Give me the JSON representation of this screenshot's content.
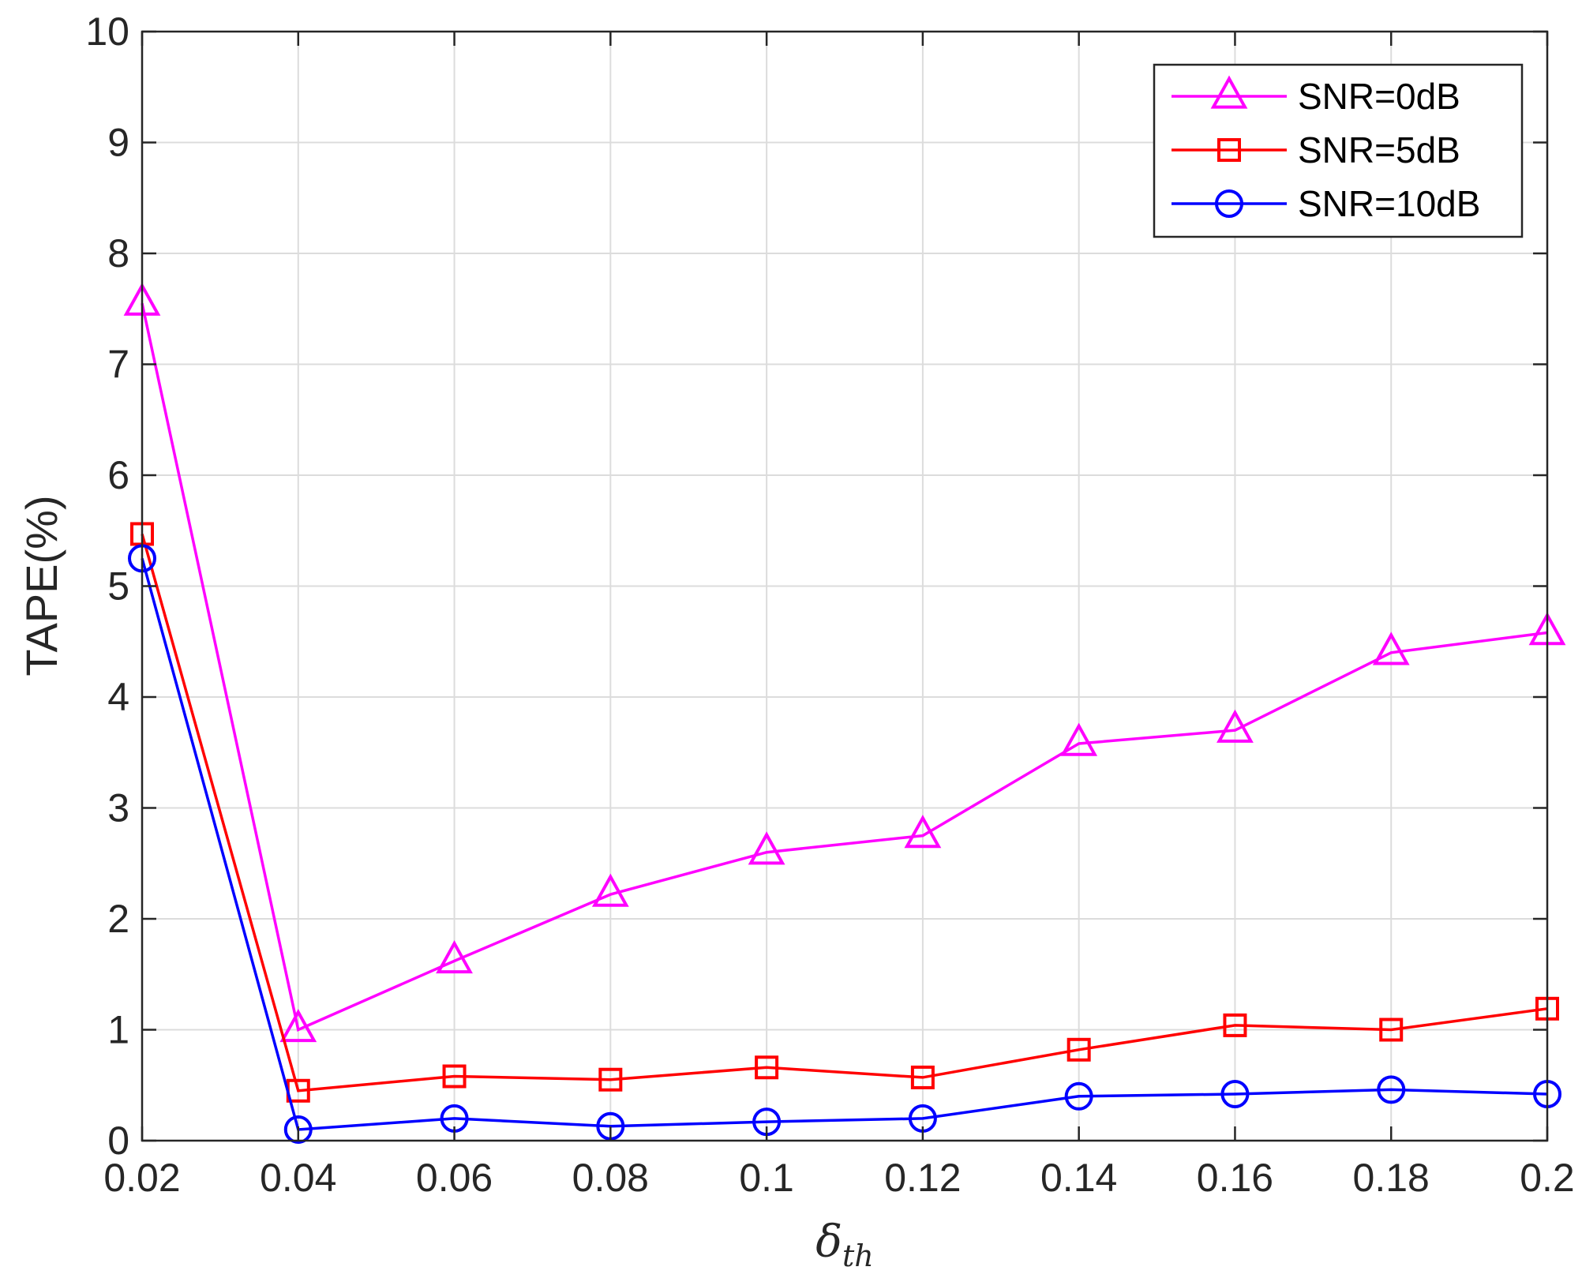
{
  "chart_data": {
    "type": "line",
    "xlabel_main": "δ",
    "xlabel_sub": "th",
    "ylabel": "TAPE(%)",
    "xlim": [
      0.02,
      0.2
    ],
    "ylim": [
      0,
      10
    ],
    "grid": true,
    "legend_position": "top-right",
    "x": [
      0.02,
      0.04,
      0.06,
      0.08,
      0.1,
      0.12,
      0.14,
      0.16,
      0.18,
      0.2
    ],
    "x_tick_labels": [
      "0.02",
      "0.04",
      "0.06",
      "0.08",
      "0.1",
      "0.12",
      "0.14",
      "0.16",
      "0.18",
      "0.2"
    ],
    "y_ticks": [
      0,
      1,
      2,
      3,
      4,
      5,
      6,
      7,
      8,
      9,
      10
    ],
    "y_tick_labels": [
      "0",
      "1",
      "2",
      "3",
      "4",
      "5",
      "6",
      "7",
      "8",
      "9",
      "10"
    ],
    "series": [
      {
        "name": "SNR=0dB",
        "color": "#ff00ff",
        "marker": "triangle",
        "values": [
          7.55,
          1.0,
          1.62,
          2.22,
          2.6,
          2.75,
          3.58,
          3.7,
          4.4,
          4.58
        ]
      },
      {
        "name": "SNR=5dB",
        "color": "#ff0000",
        "marker": "square",
        "values": [
          5.47,
          0.45,
          0.58,
          0.55,
          0.66,
          0.57,
          0.82,
          1.04,
          1.0,
          1.19
        ]
      },
      {
        "name": "SNR=10dB",
        "color": "#0000ff",
        "marker": "circle",
        "values": [
          5.25,
          0.1,
          0.2,
          0.13,
          0.17,
          0.2,
          0.4,
          0.42,
          0.46,
          0.42
        ]
      }
    ]
  }
}
